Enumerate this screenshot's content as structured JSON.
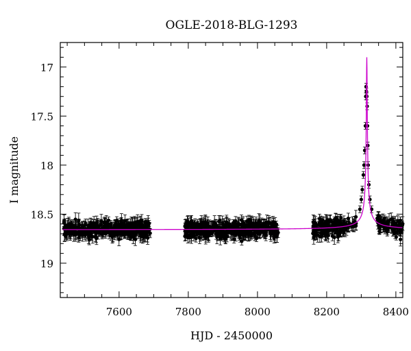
{
  "chart_data": {
    "type": "scatter",
    "title": "OGLE-2018-BLG-1293",
    "xlabel": "HJD - 2450000",
    "ylabel": "I magnitude",
    "xlim": [
      7430,
      8420
    ],
    "ylim": [
      19.35,
      16.75
    ],
    "y_inverted": true,
    "x_ticks": [
      7600,
      7800,
      8000,
      8200,
      8400
    ],
    "y_ticks": [
      17,
      17.5,
      18,
      18.5,
      19
    ],
    "y_tick_labels": [
      "17",
      "17.5",
      "18",
      "18.5",
      "19"
    ],
    "grid": false,
    "colors": {
      "points": "#000000",
      "model": "#cc00cc"
    },
    "baseline_magnitude": 18.66,
    "baseline_scatter": 0.12,
    "typical_error_bar": 0.05,
    "observing_seasons": [
      {
        "start": 7440,
        "end": 7690,
        "approx_points": 380
      },
      {
        "start": 7790,
        "end": 8060,
        "approx_points": 420
      },
      {
        "start": 8160,
        "end": 8420,
        "approx_points": 320
      }
    ],
    "event": {
      "peak_time": 8316,
      "peak_magnitude": 16.9,
      "observed_points": [
        {
          "x": 8296,
          "y": 18.45
        },
        {
          "x": 8300,
          "y": 18.35
        },
        {
          "x": 8303,
          "y": 18.25
        },
        {
          "x": 8306,
          "y": 18.1
        },
        {
          "x": 8308,
          "y": 18.0
        },
        {
          "x": 8310,
          "y": 17.85
        },
        {
          "x": 8312,
          "y": 17.6
        },
        {
          "x": 8313,
          "y": 17.3
        },
        {
          "x": 8314,
          "y": 17.2
        },
        {
          "x": 8315,
          "y": 17.25
        },
        {
          "x": 8316,
          "y": 17.3
        },
        {
          "x": 8317,
          "y": 17.4
        },
        {
          "x": 8318,
          "y": 17.6
        },
        {
          "x": 8319,
          "y": 17.8
        },
        {
          "x": 8320,
          "y": 18.0
        },
        {
          "x": 8322,
          "y": 18.2
        },
        {
          "x": 8325,
          "y": 18.35
        },
        {
          "x": 8330,
          "y": 18.45
        }
      ]
    },
    "model_curve": {
      "name": "",
      "type": "line"
    }
  }
}
